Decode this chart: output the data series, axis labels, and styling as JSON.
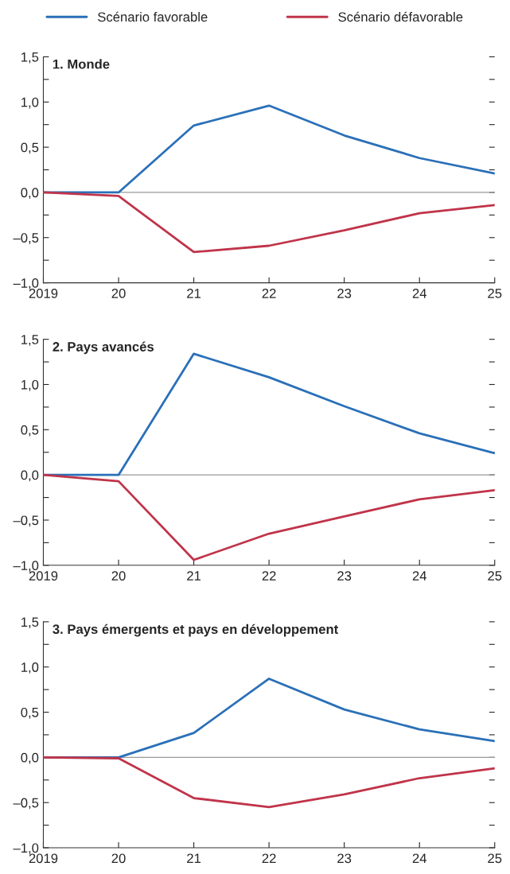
{
  "chart_data": [
    {
      "type": "line",
      "title": "1. Monde",
      "x": [
        2019,
        2020,
        2021,
        2022,
        2023,
        2024,
        2025
      ],
      "series": [
        {
          "name": "Scénario favorable",
          "color": "#2a70b8",
          "values": [
            0,
            0.0,
            0.74,
            0.96,
            0.63,
            0.38,
            0.21
          ]
        },
        {
          "name": "Scénario défavorable",
          "color": "#c0344a",
          "values": [
            0,
            -0.04,
            -0.66,
            -0.59,
            -0.42,
            -0.23,
            -0.14
          ]
        }
      ],
      "xlim": [
        2019,
        2025
      ],
      "xticks": [
        2019,
        {
          "value": 2020,
          "label": "20"
        },
        {
          "value": 2021,
          "label": "21"
        },
        {
          "value": 2022,
          "label": "22"
        },
        {
          "value": 2023,
          "label": "23"
        },
        {
          "value": 2024,
          "label": "24"
        },
        {
          "value": 2025,
          "label": "25"
        }
      ],
      "ylim": [
        -1.0,
        1.5
      ],
      "yticks": [
        {
          "value": -1.0,
          "label": "–1,0"
        },
        {
          "value": -0.75,
          "label": null
        },
        {
          "value": -0.5,
          "label": "–0,5"
        },
        {
          "value": -0.25,
          "label": null
        },
        {
          "value": 0.0,
          "label": "0,0"
        },
        {
          "value": 0.25,
          "label": null
        },
        {
          "value": 0.5,
          "label": "0,5"
        },
        {
          "value": 0.75,
          "label": null
        },
        {
          "value": 1.0,
          "label": "1,0"
        },
        {
          "value": 1.25,
          "label": null
        },
        {
          "value": 1.5,
          "label": "1,5"
        }
      ],
      "ref_lines": [
        {
          "axis": "y",
          "value": 0,
          "color": "#999999"
        }
      ],
      "legend": "top",
      "grid": false,
      "marker": "none",
      "line_style": "solid"
    },
    {
      "type": "line",
      "title": "2. Pays avancés",
      "x": [
        2019,
        2020,
        2021,
        2022,
        2023,
        2024,
        2025
      ],
      "series": [
        {
          "color": "#2a70b8",
          "values": [
            0,
            0.0,
            1.34,
            1.08,
            0.76,
            0.46,
            0.24
          ]
        },
        {
          "color": "#c0344a",
          "values": [
            0,
            -0.07,
            -0.94,
            -0.65,
            -0.46,
            -0.27,
            -0.17
          ]
        }
      ],
      "xlim": [
        2019,
        2025
      ],
      "xticks": [
        2019,
        {
          "value": 2020,
          "label": "20"
        },
        {
          "value": 2021,
          "label": "21"
        },
        {
          "value": 2022,
          "label": "22"
        },
        {
          "value": 2023,
          "label": "23"
        },
        {
          "value": 2024,
          "label": "24"
        },
        {
          "value": 2025,
          "label": "25"
        }
      ],
      "ylim": [
        -1.0,
        1.5
      ],
      "yticks": [
        {
          "value": -1.0,
          "label": "–1,0"
        },
        {
          "value": -0.75,
          "label": null
        },
        {
          "value": -0.5,
          "label": "–0,5"
        },
        {
          "value": -0.25,
          "label": null
        },
        {
          "value": 0.0,
          "label": "0,0"
        },
        {
          "value": 0.25,
          "label": null
        },
        {
          "value": 0.5,
          "label": "0,5"
        },
        {
          "value": 0.75,
          "label": null
        },
        {
          "value": 1.0,
          "label": "1,0"
        },
        {
          "value": 1.25,
          "label": null
        },
        {
          "value": 1.5,
          "label": "1,5"
        }
      ],
      "ref_lines": [
        {
          "axis": "y",
          "value": 0,
          "color": "#999999"
        }
      ],
      "grid": false,
      "marker": "none",
      "line_style": "solid"
    },
    {
      "type": "line",
      "title": "3. Pays émergents et pays en développement",
      "x": [
        2019,
        2020,
        2021,
        2022,
        2023,
        2024,
        2025
      ],
      "series": [
        {
          "color": "#2a70b8",
          "values": [
            0,
            0.0,
            0.27,
            0.87,
            0.53,
            0.31,
            0.18
          ]
        },
        {
          "color": "#c0344a",
          "values": [
            0,
            -0.01,
            -0.45,
            -0.55,
            -0.41,
            -0.23,
            -0.12
          ]
        }
      ],
      "xlim": [
        2019,
        2025
      ],
      "xticks": [
        2019,
        {
          "value": 2020,
          "label": "20"
        },
        {
          "value": 2021,
          "label": "21"
        },
        {
          "value": 2022,
          "label": "22"
        },
        {
          "value": 2023,
          "label": "23"
        },
        {
          "value": 2024,
          "label": "24"
        },
        {
          "value": 2025,
          "label": "25"
        }
      ],
      "ylim": [
        -1.0,
        1.5
      ],
      "yticks": [
        {
          "value": -1.0,
          "label": "–1,0"
        },
        {
          "value": -0.75,
          "label": null
        },
        {
          "value": -0.5,
          "label": "–0,5"
        },
        {
          "value": -0.25,
          "label": null
        },
        {
          "value": 0.0,
          "label": "0,0"
        },
        {
          "value": 0.25,
          "label": null
        },
        {
          "value": 0.5,
          "label": "0,5"
        },
        {
          "value": 0.75,
          "label": null
        },
        {
          "value": 1.0,
          "label": "1,0"
        },
        {
          "value": 1.25,
          "label": null
        },
        {
          "value": 1.5,
          "label": "1,5"
        }
      ],
      "ref_lines": [
        {
          "axis": "y",
          "value": 0,
          "color": "#999999"
        }
      ],
      "grid": false,
      "marker": "none",
      "line_style": "solid"
    }
  ]
}
